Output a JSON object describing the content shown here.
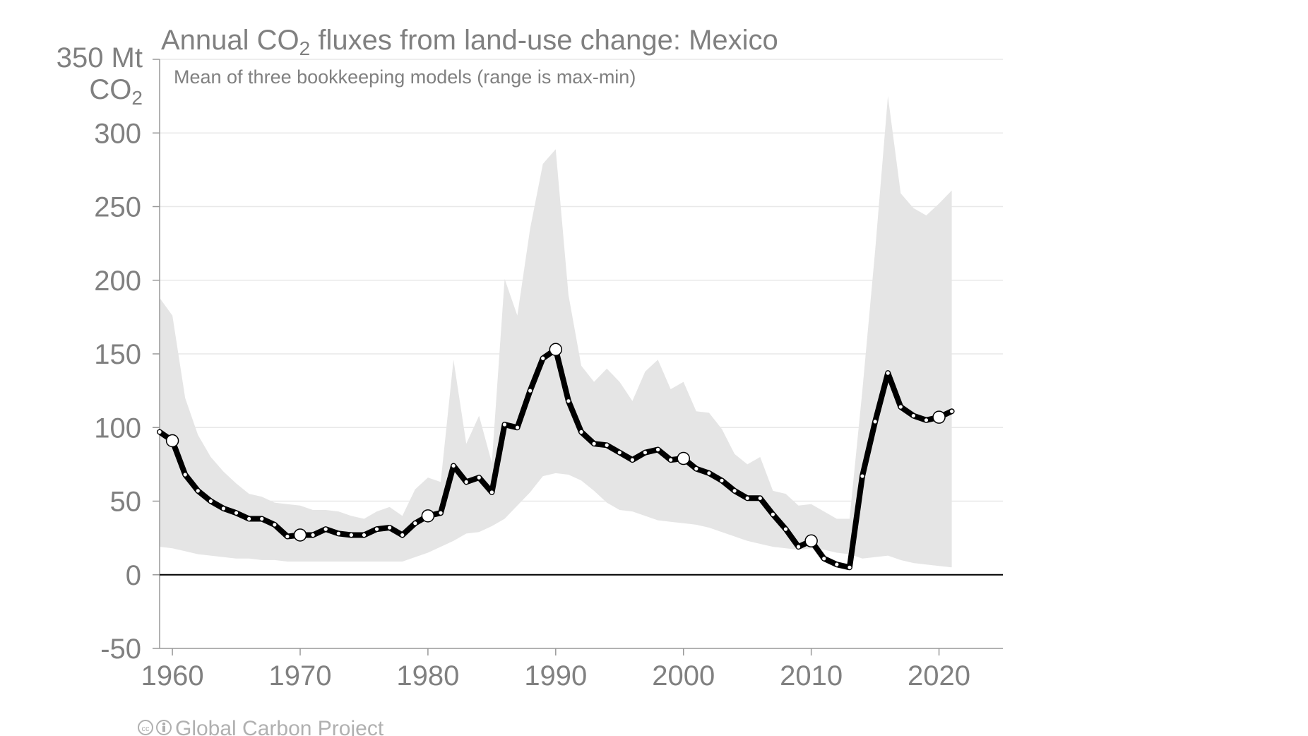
{
  "chart_data": {
    "type": "line",
    "title_main": "Annual CO",
    "title_sub": "2",
    "title_rest": " fluxes from land-use change: Mexico",
    "subtitle": "Mean of three bookkeeping models (range is max-min)",
    "unit_line1": "350 Mt",
    "unit_line2_main": "CO",
    "unit_line2_sub": "2",
    "credit": "Global Carbon Project",
    "ylim": [
      -50,
      350
    ],
    "xlim": [
      1959,
      2025
    ],
    "y_ticks": [
      -50,
      0,
      50,
      100,
      150,
      200,
      250,
      300
    ],
    "x_ticks": [
      1960,
      1970,
      1980,
      1990,
      2000,
      2010,
      2020
    ],
    "grid": true,
    "highlight_years": [
      1960,
      1970,
      1980,
      1990,
      2000,
      2010,
      2020
    ],
    "colors": {
      "line": "#000000",
      "band": "#e5e5e5",
      "text": "#808080",
      "credit": "#b0b0b0"
    },
    "series": [
      {
        "kind": "mean",
        "x": [
          1959,
          1960,
          1961,
          1962,
          1963,
          1964,
          1965,
          1966,
          1967,
          1968,
          1969,
          1970,
          1971,
          1972,
          1973,
          1974,
          1975,
          1976,
          1977,
          1978,
          1979,
          1980,
          1981,
          1982,
          1983,
          1984,
          1985,
          1986,
          1987,
          1988,
          1989,
          1990,
          1991,
          1992,
          1993,
          1994,
          1995,
          1996,
          1997,
          1998,
          1999,
          2000,
          2001,
          2002,
          2003,
          2004,
          2005,
          2006,
          2007,
          2008,
          2009,
          2010,
          2011,
          2012,
          2013,
          2014,
          2015,
          2016,
          2017,
          2018,
          2019,
          2020,
          2021
        ],
        "values": [
          97,
          91,
          68,
          57,
          50,
          45,
          42,
          38,
          38,
          34,
          26,
          27,
          27,
          31,
          28,
          27,
          27,
          31,
          32,
          27,
          35,
          40,
          42,
          74,
          63,
          66,
          56,
          102,
          100,
          125,
          147,
          153,
          118,
          97,
          89,
          88,
          83,
          78,
          83,
          85,
          78,
          79,
          72,
          69,
          64,
          57,
          52,
          52,
          41,
          31,
          19,
          23,
          11,
          7,
          5,
          67,
          104,
          137,
          114,
          108,
          105,
          107,
          111
        ]
      },
      {
        "kind": "range",
        "x": [
          1959,
          1960,
          1961,
          1962,
          1963,
          1964,
          1965,
          1966,
          1967,
          1968,
          1969,
          1970,
          1971,
          1972,
          1973,
          1974,
          1975,
          1976,
          1977,
          1978,
          1979,
          1980,
          1981,
          1982,
          1983,
          1984,
          1985,
          1986,
          1987,
          1988,
          1989,
          1990,
          1991,
          1992,
          1993,
          1994,
          1995,
          1996,
          1997,
          1998,
          1999,
          2000,
          2001,
          2002,
          2003,
          2004,
          2005,
          2006,
          2007,
          2008,
          2009,
          2010,
          2011,
          2012,
          2013,
          2014,
          2015,
          2016,
          2017,
          2018,
          2019,
          2020,
          2021
        ],
        "max": [
          188,
          176,
          120,
          95,
          80,
          70,
          62,
          55,
          53,
          49,
          48,
          47,
          44,
          44,
          43,
          40,
          38,
          43,
          46,
          40,
          58,
          66,
          63,
          146,
          89,
          108,
          76,
          201,
          176,
          235,
          279,
          289,
          190,
          142,
          131,
          140,
          131,
          118,
          138,
          146,
          126,
          131,
          111,
          110,
          99,
          82,
          75,
          80,
          57,
          55,
          47,
          48,
          43,
          38,
          38,
          125,
          220,
          325,
          259,
          249,
          244,
          252,
          261
        ],
        "min": [
          19,
          18,
          16,
          14,
          13,
          12,
          11,
          11,
          10,
          10,
          9,
          9,
          9,
          9,
          9,
          9,
          9,
          9,
          9,
          9,
          12,
          15,
          19,
          23,
          28,
          29,
          33,
          38,
          47,
          56,
          67,
          69,
          68,
          64,
          57,
          49,
          44,
          43,
          40,
          37,
          36,
          35,
          34,
          32,
          29,
          26,
          23,
          21,
          19,
          18,
          17,
          18,
          17,
          15,
          14,
          11,
          12,
          13,
          10,
          8,
          7,
          6,
          5
        ]
      }
    ]
  }
}
